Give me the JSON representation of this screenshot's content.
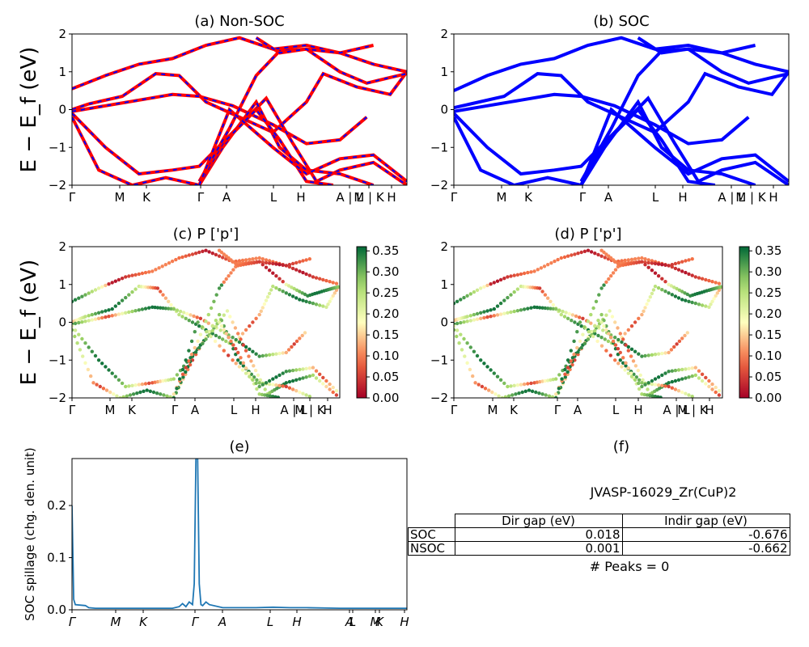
{
  "chart_data": [
    {
      "id": "a",
      "type": "line",
      "title": "(a) Non-SOC",
      "ylabel": "E − E_f (eV)",
      "ylim": [
        -2,
        2
      ],
      "yticks": [
        "2",
        "1",
        "0",
        "−1",
        "−2"
      ],
      "xticks": [
        "Γ",
        "M",
        "K",
        "Γ",
        "A",
        "L",
        "H",
        "A",
        "L",
        "M",
        "K",
        "H"
      ],
      "xtick_labels_grouped": [
        "Γ",
        "M",
        "K",
        "Γ",
        "A",
        "L",
        "H",
        "A | L",
        "M | K",
        "H"
      ],
      "series_colors": [
        "#ff0000",
        "#0000ff"
      ],
      "series_style": "red solid with blue dashes",
      "bands": [
        {
          "x": [
            0,
            0.1,
            0.2,
            0.3,
            0.4,
            0.5,
            0.6,
            0.7,
            0.8,
            0.9,
            1.0
          ],
          "y": [
            0.55,
            0.9,
            1.2,
            1.35,
            1.7,
            1.9,
            1.6,
            1.7,
            1.5,
            1.2,
            1.0
          ]
        },
        {
          "x": [
            0,
            0.05,
            0.15,
            0.25,
            0.32,
            0.4,
            0.5,
            0.6,
            0.7,
            0.75,
            0.85,
            0.95,
            1.0
          ],
          "y": [
            0.0,
            0.15,
            0.35,
            0.95,
            0.9,
            0.2,
            -0.2,
            -0.6,
            0.2,
            0.95,
            0.6,
            0.4,
            1.0
          ]
        },
        {
          "x": [
            0,
            0.1,
            0.2,
            0.3,
            0.38,
            0.48,
            0.6,
            0.7,
            0.8,
            0.88
          ],
          "y": [
            -0.05,
            0.1,
            0.25,
            0.4,
            0.35,
            0.1,
            -0.4,
            -0.9,
            -0.8,
            -0.2
          ]
        },
        {
          "x": [
            0,
            0.1,
            0.2,
            0.3,
            0.38,
            0.48,
            0.58,
            0.66,
            0.73,
            0.8,
            0.9,
            1.0
          ],
          "y": [
            -0.1,
            -1.0,
            -1.7,
            -1.6,
            -1.5,
            -0.6,
            0.3,
            -0.9,
            -1.9,
            -1.6,
            -1.4,
            -2.0
          ]
        },
        {
          "x": [
            0,
            0.08,
            0.18,
            0.28,
            0.38,
            0.45,
            0.55,
            0.62,
            0.7,
            0.8,
            0.9
          ],
          "y": [
            -0.2,
            -1.6,
            -2.0,
            -1.8,
            -2.0,
            -1.0,
            0.2,
            -1.0,
            -1.6,
            -1.7,
            -2.0
          ]
        },
        {
          "x": [
            0.38,
            0.45,
            0.55,
            0.62,
            0.7,
            0.78
          ],
          "y": [
            -2.0,
            -0.9,
            0.0,
            -0.8,
            -1.9,
            -2.0
          ]
        },
        {
          "x": [
            0.38,
            0.47,
            0.55,
            0.62,
            0.7,
            0.8,
            0.9
          ],
          "y": [
            -1.9,
            -0.5,
            0.9,
            1.55,
            1.6,
            1.5,
            1.7
          ]
        },
        {
          "x": [
            0.38,
            0.47,
            0.6,
            0.7,
            0.8,
            0.9,
            1.0
          ],
          "y": [
            -2.0,
            0.0,
            -1.0,
            -1.7,
            -1.3,
            -1.2,
            -1.9
          ]
        },
        {
          "x": [
            0.55,
            0.62,
            0.7,
            0.8,
            0.88,
            0.95,
            1.0
          ],
          "y": [
            1.9,
            1.5,
            1.6,
            1.0,
            0.7,
            0.85,
            0.95
          ]
        }
      ]
    },
    {
      "id": "b",
      "type": "line",
      "title": "(b) SOC",
      "ylim": [
        -2,
        2
      ],
      "yticks": [
        "2",
        "1",
        "0",
        "−1",
        "−2"
      ],
      "xtick_labels_grouped": [
        "Γ",
        "M",
        "K",
        "Γ",
        "A",
        "L",
        "H",
        "A | L",
        "M | K",
        "H"
      ],
      "series_colors": [
        "#0000ff"
      ],
      "bands": [
        {
          "x": [
            0,
            0.1,
            0.2,
            0.3,
            0.4,
            0.5,
            0.6,
            0.7,
            0.8,
            0.9,
            1.0
          ],
          "y": [
            0.5,
            0.9,
            1.2,
            1.35,
            1.7,
            1.9,
            1.6,
            1.7,
            1.5,
            1.2,
            1.0
          ]
        },
        {
          "x": [
            0,
            0.05,
            0.15,
            0.25,
            0.32,
            0.4,
            0.5,
            0.6,
            0.7,
            0.75,
            0.85,
            0.95,
            1.0
          ],
          "y": [
            0.05,
            0.15,
            0.35,
            0.95,
            0.9,
            0.2,
            -0.2,
            -0.6,
            0.2,
            0.95,
            0.6,
            0.4,
            1.0
          ]
        },
        {
          "x": [
            0,
            0.1,
            0.2,
            0.3,
            0.38,
            0.48,
            0.6,
            0.7,
            0.8,
            0.88
          ],
          "y": [
            -0.05,
            0.1,
            0.25,
            0.4,
            0.35,
            0.1,
            -0.4,
            -0.9,
            -0.8,
            -0.2
          ]
        },
        {
          "x": [
            0,
            0.1,
            0.2,
            0.3,
            0.38,
            0.48,
            0.58,
            0.66,
            0.73,
            0.8,
            0.9,
            1.0
          ],
          "y": [
            -0.1,
            -1.0,
            -1.7,
            -1.6,
            -1.5,
            -0.6,
            0.3,
            -0.9,
            -1.9,
            -1.6,
            -1.4,
            -2.0
          ]
        },
        {
          "x": [
            0,
            0.08,
            0.18,
            0.28,
            0.38,
            0.45,
            0.55,
            0.62,
            0.7,
            0.8,
            0.9
          ],
          "y": [
            -0.2,
            -1.6,
            -2.0,
            -1.8,
            -2.0,
            -1.0,
            0.2,
            -1.0,
            -1.6,
            -1.7,
            -2.0
          ]
        },
        {
          "x": [
            0.38,
            0.45,
            0.55,
            0.62,
            0.7,
            0.78
          ],
          "y": [
            -2.0,
            -0.9,
            0.0,
            -0.8,
            -1.9,
            -2.0
          ]
        },
        {
          "x": [
            0.38,
            0.47,
            0.55,
            0.62,
            0.7,
            0.8,
            0.9
          ],
          "y": [
            -1.9,
            -0.5,
            0.9,
            1.55,
            1.6,
            1.5,
            1.7
          ]
        },
        {
          "x": [
            0.38,
            0.47,
            0.6,
            0.7,
            0.8,
            0.9,
            1.0
          ],
          "y": [
            -2.0,
            0.0,
            -1.0,
            -1.7,
            -1.3,
            -1.2,
            -1.9
          ]
        },
        {
          "x": [
            0.55,
            0.62,
            0.7,
            0.8,
            0.88,
            0.95,
            1.0
          ],
          "y": [
            1.9,
            1.5,
            1.6,
            1.0,
            0.7,
            0.85,
            0.95
          ]
        }
      ]
    },
    {
      "id": "c",
      "type": "scatter",
      "title": "(c)  P ['p']",
      "ylabel": "E − E_f (eV)",
      "ylim": [
        -2,
        2
      ],
      "yticks": [
        "2",
        "1",
        "0",
        "−1",
        "−2"
      ],
      "xtick_labels_grouped": [
        "Γ",
        "M",
        "K",
        "Γ",
        "A",
        "L",
        "H",
        "A | L",
        "M | K",
        "H"
      ],
      "colormap": "RdYlGn",
      "colorbar_ticks": [
        "0.35",
        "0.30",
        "0.25",
        "0.20",
        "0.15",
        "0.10",
        "0.05",
        "0.00"
      ],
      "colorbar_range": [
        0,
        0.36
      ]
    },
    {
      "id": "d",
      "type": "scatter",
      "title": "(d) P ['p']",
      "ylim": [
        -2,
        2
      ],
      "yticks": [
        "2",
        "1",
        "0",
        "−1",
        "−2"
      ],
      "xtick_labels_grouped": [
        "Γ",
        "M",
        "K",
        "Γ",
        "A",
        "L",
        "H",
        "A | L",
        "M | K",
        "H"
      ],
      "colormap": "RdYlGn",
      "colorbar_ticks": [
        "0.35",
        "0.30",
        "0.25",
        "0.20",
        "0.15",
        "0.10",
        "0.05",
        "0.00"
      ],
      "colorbar_range": [
        0,
        0.36
      ]
    },
    {
      "id": "e",
      "type": "line",
      "title": "(e)",
      "ylabel": "SOC spillage (chg. den. unit)",
      "ylim": [
        0,
        0.29
      ],
      "yticks": [
        "0.2",
        "0.1",
        "0.0"
      ],
      "xtick_labels": [
        "Γ",
        "M",
        "K",
        "Γ",
        "A",
        "L",
        "H",
        "A",
        "L",
        "M",
        "K",
        "H"
      ],
      "series_colors": [
        "#1f77b4"
      ],
      "x": [
        0,
        0.005,
        0.01,
        0.04,
        0.05,
        0.07,
        0.2,
        0.3,
        0.32,
        0.33,
        0.34,
        0.35,
        0.36,
        0.365,
        0.37,
        0.375,
        0.38,
        0.385,
        0.39,
        0.4,
        0.41,
        0.45,
        0.55,
        0.6,
        0.65,
        0.7,
        0.8,
        0.9,
        1.0
      ],
      "y": [
        0.2,
        0.02,
        0.01,
        0.008,
        0.004,
        0.003,
        0.003,
        0.003,
        0.006,
        0.012,
        0.006,
        0.015,
        0.01,
        0.05,
        0.29,
        0.29,
        0.05,
        0.01,
        0.008,
        0.015,
        0.01,
        0.004,
        0.004,
        0.005,
        0.004,
        0.004,
        0.003,
        0.003,
        0.003
      ]
    }
  ],
  "info_panel": {
    "title": "(f)",
    "material": "JVASP-16029_Zr(CuP)2",
    "table": {
      "columns": [
        "Dir gap (eV)",
        "Indir gap (eV)"
      ],
      "rows": [
        {
          "label": "SOC",
          "dir": "0.018",
          "indir": "-0.676"
        },
        {
          "label": "NSOC",
          "dir": "0.001",
          "indir": "-0.662"
        }
      ]
    },
    "peaks_text": "# Peaks = 0"
  }
}
